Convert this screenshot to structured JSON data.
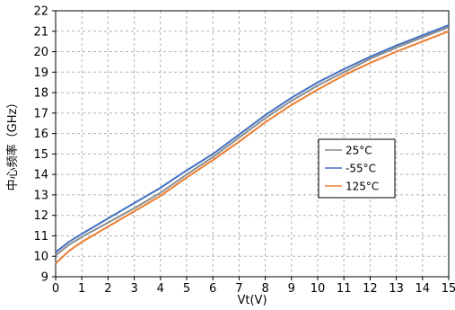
{
  "chart_data": {
    "type": "line",
    "xlabel": "Vt(V)",
    "ylabel": "中心频率（GHz）",
    "xlim": [
      0,
      15
    ],
    "ylim": [
      9,
      22
    ],
    "x_ticks": [
      "0",
      "1",
      "2",
      "3",
      "4",
      "5",
      "6",
      "7",
      "8",
      "9",
      "10",
      "11",
      "12",
      "13",
      "14",
      "15"
    ],
    "y_ticks": [
      "9",
      "10",
      "11",
      "12",
      "13",
      "14",
      "15",
      "16",
      "17",
      "18",
      "19",
      "20",
      "21",
      "22"
    ],
    "grid": true,
    "legend_position": "right",
    "x": [
      0,
      0.5,
      1,
      2,
      3,
      4,
      5,
      6,
      7,
      8,
      9,
      10,
      11,
      12,
      13,
      14,
      15
    ],
    "series": [
      {
        "name": "25°C",
        "color": "#8c8c8c",
        "values": [
          10.05,
          10.55,
          10.95,
          11.65,
          12.35,
          13.1,
          14.0,
          14.85,
          15.8,
          16.75,
          17.6,
          18.35,
          19.0,
          19.65,
          20.2,
          20.7,
          21.2
        ]
      },
      {
        "name": "-55°C",
        "color": "#4472c4",
        "values": [
          10.2,
          10.7,
          11.1,
          11.85,
          12.6,
          13.35,
          14.2,
          15.0,
          15.95,
          16.9,
          17.75,
          18.5,
          19.15,
          19.75,
          20.3,
          20.8,
          21.3
        ]
      },
      {
        "name": "125°C",
        "color": "#ed7d31",
        "values": [
          9.65,
          10.25,
          10.7,
          11.45,
          12.2,
          12.95,
          13.85,
          14.7,
          15.6,
          16.55,
          17.4,
          18.15,
          18.85,
          19.45,
          20.0,
          20.5,
          21.0
        ]
      }
    ]
  }
}
